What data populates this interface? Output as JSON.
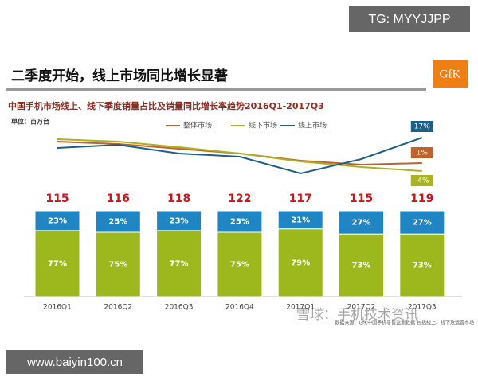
{
  "watermark_top": "TG: MYYJJPP",
  "banner": "二季度开始，线上市场同比增长显著",
  "logo": "GfK",
  "source": "数据来源：GfK中国手机零售监测数据 包括线上、线下及运营市场",
  "watermark_bottom": "雪球：手机技术资讯",
  "site": "www.baiyin100.cn",
  "chart_data": {
    "type": "bar",
    "title": "中国手机市场线上、线下季度销量占比及销量同比增长率趋势2016Q1-2017Q3",
    "unit": "单位：百万台",
    "categories": [
      "2016Q1",
      "2016Q2",
      "2016Q3",
      "2016Q4",
      "2017Q1",
      "2017Q2",
      "2017Q3"
    ],
    "totals": [
      115,
      116,
      118,
      122,
      117,
      115,
      119
    ],
    "ylim": [
      0,
      100
    ],
    "bars": [
      {
        "color": "#9cb81c",
        "values": [
          77,
          75,
          77,
          75,
          79,
          73,
          73
        ],
        "value_labels": [
          "77%",
          "75%",
          "77%",
          "75%",
          "79%",
          "73%",
          "73%"
        ]
      },
      {
        "color": "#1f86c3",
        "values": [
          23,
          25,
          23,
          25,
          21,
          27,
          27
        ],
        "value_labels": [
          "23%",
          "25%",
          "23%",
          "25%",
          "21%",
          "27%",
          "27%"
        ]
      }
    ],
    "y2lim": [
      -20,
      30
    ],
    "lines": [
      {
        "name": "整体市场",
        "color": "#c0622a",
        "values": [
          14.5,
          13,
          10,
          7,
          2.5,
          0,
          1
        ],
        "end_label": "1%"
      },
      {
        "name": "线下市场",
        "color": "#a8b222",
        "values": [
          16,
          14.5,
          11,
          7,
          2,
          -1.5,
          -4
        ],
        "end_label": "-4%"
      },
      {
        "name": "线上市场",
        "color": "#1c5f8a",
        "values": [
          10.5,
          12.5,
          7,
          5,
          -5.5,
          3.5,
          17
        ],
        "end_label": "17%"
      }
    ]
  }
}
